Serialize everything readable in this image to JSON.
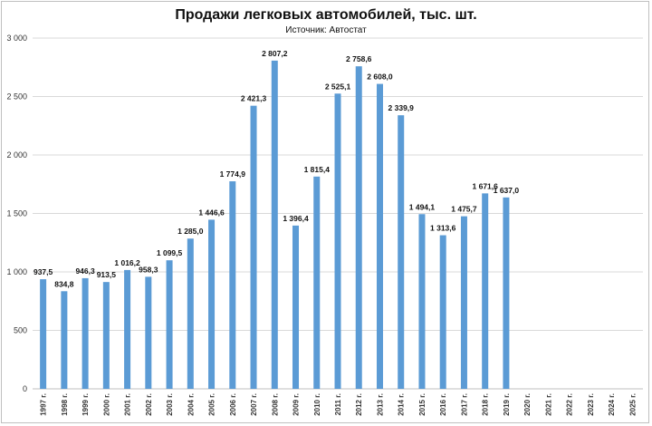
{
  "chart_data": {
    "type": "bar",
    "title": "Продажи легковых автомобилей, тыс. шт.",
    "subtitle": "Источник: Автостат",
    "xlabel": "",
    "ylabel": "",
    "ylim": [
      0,
      3000
    ],
    "yticks": [
      0,
      500,
      1000,
      1500,
      2000,
      2500,
      3000
    ],
    "ytick_labels": [
      "0",
      "500",
      "1 000",
      "1 500",
      "2 000",
      "2 500",
      "3 000"
    ],
    "grid": true,
    "legend": "none",
    "color": "#5b9bd5",
    "categories": [
      "1997 г.",
      "1998 г.",
      "1999 г.",
      "2000 г.",
      "2001 г.",
      "2002 г.",
      "2003 г.",
      "2004 г.",
      "2005 г.",
      "2006 г.",
      "2007 г.",
      "2008 г.",
      "2009 г.",
      "2010 г.",
      "2011 г.",
      "2012 г.",
      "2013 г.",
      "2014 г.",
      "2015 г.",
      "2016 г.",
      "2017 г.",
      "2018 г.",
      "2019 г.",
      "2020 г.",
      "2021 г.",
      "2022 г.",
      "2023 г.",
      "2024 г.",
      "2025 г."
    ],
    "values": [
      937.5,
      834.8,
      946.3,
      913.5,
      1016.2,
      958.3,
      1099.5,
      1285.0,
      1446.6,
      1774.9,
      2421.3,
      2807.2,
      1396.4,
      1815.4,
      2525.1,
      2758.6,
      2608.0,
      2339.9,
      1494.1,
      1313.6,
      1475.7,
      1671.6,
      1637.0,
      null,
      null,
      null,
      null,
      null,
      null
    ],
    "data_labels": [
      "937,5",
      "834,8",
      "946,3",
      "913,5",
      "1 016,2",
      "958,3",
      "1 099,5",
      "1 285,0",
      "1 446,6",
      "1 774,9",
      "2 421,3",
      "2 807,2",
      "1 396,4",
      "1 815,4",
      "2 525,1",
      "2 758,6",
      "2 608,0",
      "2 339,9",
      "1 494,1",
      "1 313,6",
      "1 475,7",
      "1 671,6",
      "1 637,0",
      "",
      "",
      "",
      "",
      "",
      ""
    ]
  }
}
